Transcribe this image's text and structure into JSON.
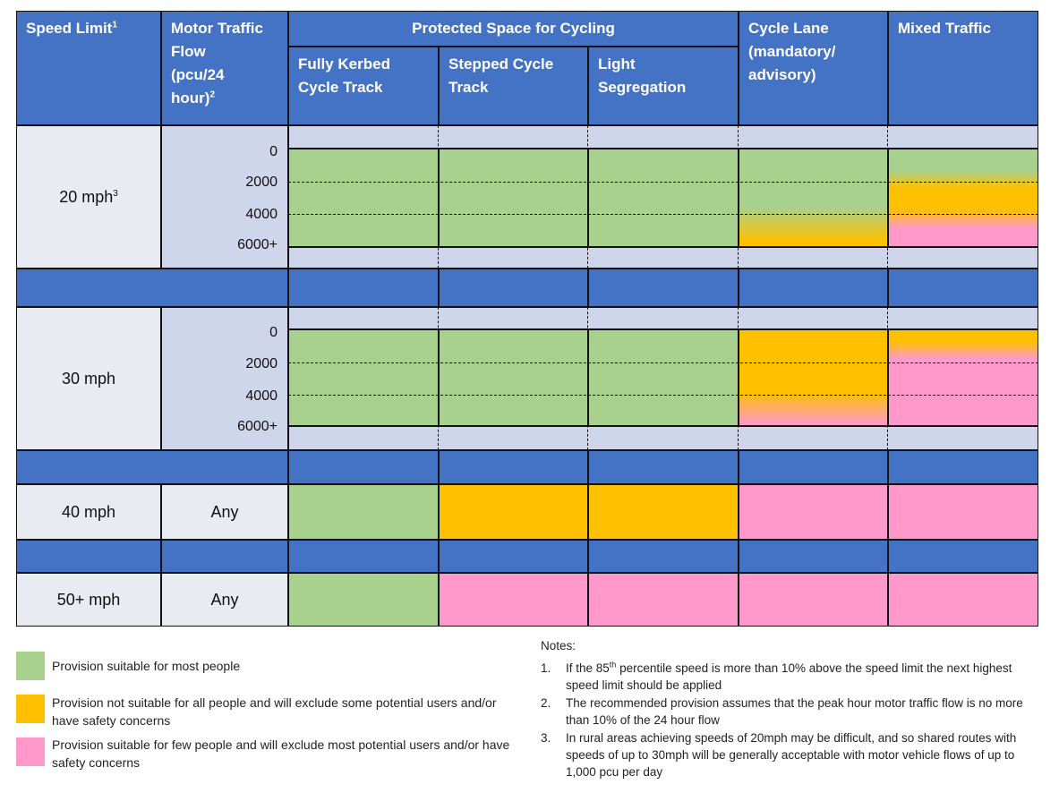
{
  "header": {
    "speed_limit": {
      "lines": [
        "Speed Limit"
      ],
      "sup": "1"
    },
    "motor_traffic_flow": {
      "lines": [
        "Motor Traffic",
        "Flow",
        "(pcu/24",
        "hour)"
      ],
      "sup": "2"
    },
    "protected_space": "Protected Space for Cycling",
    "fully_kerbed": {
      "lines": [
        "Fully Kerbed",
        "Cycle Track"
      ]
    },
    "stepped": {
      "lines": [
        "Stepped Cycle",
        "Track"
      ]
    },
    "light": {
      "lines": [
        "Light",
        "Segregation"
      ]
    },
    "cycle_lane": {
      "lines": [
        "Cycle Lane",
        "(mandatory/",
        "advisory)"
      ]
    },
    "mixed": {
      "lines": [
        "Mixed Traffic"
      ]
    }
  },
  "rows": [
    {
      "speed": "20 mph",
      "sup": "3",
      "flows": [
        "0",
        "2000",
        "4000",
        "6000+"
      ]
    },
    {
      "speed": "30 mph",
      "flows": [
        "0",
        "2000",
        "4000",
        "6000+"
      ]
    },
    {
      "speed": "40 mph",
      "flow": "Any"
    },
    {
      "speed": "50+ mph",
      "flow": "Any"
    }
  ],
  "legend": [
    "Provision suitable for most people",
    "Provision not suitable for all people and will exclude some potential users and/or have safety concerns",
    "Provision suitable for few people and will exclude most potential users and/or have safety concerns"
  ],
  "notes": {
    "title": "Notes:",
    "items": [
      {
        "number": "1.",
        "before": "If the 85",
        "sup": "th",
        "after": "percentile speed is more than 10% above the speed limit the next highest speed limit should be applied"
      },
      {
        "number": "2.",
        "after": "The recommended provision assumes that the peak hour motor traffic flow is no more than 10% of the 24 hour flow"
      },
      {
        "number": "3.",
        "after": "In rural areas achieving speeds of 20mph may be difficult, and so shared routes with speeds of up to 30mph will be generally acceptable with motor vehicle flows of up to 1,000 pcu per day"
      }
    ]
  }
}
